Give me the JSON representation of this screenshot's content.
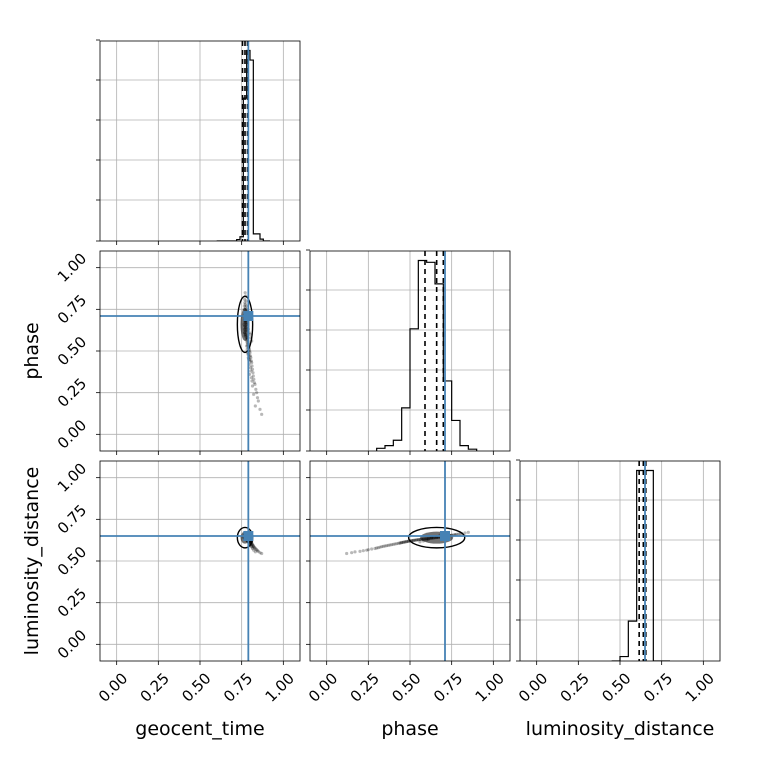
{
  "chart_data": {
    "type": "corner",
    "parameters": [
      "geocent_time",
      "phase",
      "luminosity_distance"
    ],
    "xlabels": [
      "geocent_time",
      "phase",
      "luminosity_distance"
    ],
    "ylabels": [
      "",
      "phase",
      "luminosity_distance"
    ],
    "axis_range": [
      -0.1,
      1.1
    ],
    "ticks": [
      0.0,
      0.25,
      0.5,
      0.75,
      1.0
    ],
    "tick_labels": [
      "0.00",
      "0.25",
      "0.50",
      "0.75",
      "1.00"
    ],
    "grid": true,
    "truths": [
      0.79,
      0.71,
      0.65
    ],
    "truth_color": "#4682b4",
    "hist_color": "#000000",
    "point_color": "#000000",
    "quantiles": [
      [
        0.755,
        0.77,
        0.785
      ],
      [
        0.59,
        0.66,
        0.7
      ],
      [
        0.615,
        0.64,
        0.655
      ]
    ],
    "histograms": [
      {
        "edges": [
          0.6,
          0.62,
          0.64,
          0.66,
          0.68,
          0.7,
          0.72,
          0.74,
          0.76,
          0.78,
          0.8,
          0.82,
          0.84,
          0.86,
          0.88,
          0.9,
          0.92
        ],
        "counts": [
          0,
          0,
          0,
          0,
          0,
          0,
          0.3,
          0.9,
          30,
          40,
          38,
          1.5,
          1.5,
          0.4,
          0,
          0
        ]
      },
      {
        "edges": [
          0.3,
          0.35,
          0.4,
          0.45,
          0.5,
          0.55,
          0.6,
          0.65,
          0.7,
          0.75,
          0.8,
          0.85,
          0.9
        ],
        "counts": [
          0.3,
          0.6,
          1.2,
          4.8,
          13.6,
          21.2,
          21.0,
          18.6,
          7.8,
          3.4,
          0.6,
          0.2
        ]
      },
      {
        "edges": [
          0.45,
          0.5,
          0.55,
          0.6,
          0.65,
          0.7,
          0.75,
          0.8
        ],
        "counts": [
          0,
          0.5,
          4.5,
          21.5,
          21.5,
          0,
          0
        ]
      }
    ],
    "samples": {
      "geocent_time": [
        0.771,
        0.774,
        0.768,
        0.776,
        0.769,
        0.772,
        0.777,
        0.766,
        0.773,
        0.779,
        0.765,
        0.774,
        0.771,
        0.778,
        0.768,
        0.77,
        0.775,
        0.763,
        0.772,
        0.776,
        0.767,
        0.781,
        0.773,
        0.769,
        0.77,
        0.775,
        0.764,
        0.778,
        0.772,
        0.768,
        0.774,
        0.776,
        0.766,
        0.771,
        0.78,
        0.773,
        0.769,
        0.767,
        0.775,
        0.772,
        0.777,
        0.771,
        0.782,
        0.784,
        0.779,
        0.786,
        0.781,
        0.788,
        0.783,
        0.79,
        0.785,
        0.792,
        0.787,
        0.78,
        0.794,
        0.789,
        0.796,
        0.783,
        0.791,
        0.798,
        0.786,
        0.8,
        0.793,
        0.788,
        0.803,
        0.795,
        0.79,
        0.805,
        0.798,
        0.792,
        0.808,
        0.8,
        0.81,
        0.795,
        0.812,
        0.803,
        0.815,
        0.806,
        0.818,
        0.797,
        0.82,
        0.809,
        0.823,
        0.812,
        0.826,
        0.83,
        0.815,
        0.835,
        0.84,
        0.822,
        0.845,
        0.85,
        0.832,
        0.86,
        0.87,
        0.776,
        0.783,
        0.79,
        0.795,
        0.8,
        0.805,
        0.81
      ],
      "phase": [
        0.85,
        0.83,
        0.81,
        0.8,
        0.79,
        0.78,
        0.77,
        0.77,
        0.76,
        0.75,
        0.75,
        0.74,
        0.73,
        0.73,
        0.72,
        0.72,
        0.71,
        0.71,
        0.7,
        0.7,
        0.69,
        0.69,
        0.68,
        0.68,
        0.67,
        0.67,
        0.66,
        0.66,
        0.65,
        0.65,
        0.64,
        0.64,
        0.63,
        0.63,
        0.62,
        0.62,
        0.61,
        0.61,
        0.6,
        0.6,
        0.59,
        0.59,
        0.58,
        0.58,
        0.57,
        0.57,
        0.56,
        0.56,
        0.55,
        0.55,
        0.54,
        0.54,
        0.53,
        0.53,
        0.52,
        0.52,
        0.51,
        0.51,
        0.5,
        0.5,
        0.49,
        0.49,
        0.48,
        0.48,
        0.47,
        0.47,
        0.46,
        0.46,
        0.45,
        0.45,
        0.44,
        0.44,
        0.43,
        0.42,
        0.41,
        0.4,
        0.39,
        0.38,
        0.37,
        0.36,
        0.35,
        0.34,
        0.33,
        0.32,
        0.31,
        0.3,
        0.29,
        0.27,
        0.25,
        0.24,
        0.22,
        0.2,
        0.17,
        0.15,
        0.12,
        0.68,
        0.66,
        0.63,
        0.61,
        0.6,
        0.58,
        0.56
      ],
      "luminosity_distance": [
        0.672,
        0.668,
        0.665,
        0.663,
        0.661,
        0.66,
        0.658,
        0.657,
        0.656,
        0.655,
        0.654,
        0.653,
        0.652,
        0.651,
        0.65,
        0.649,
        0.648,
        0.648,
        0.647,
        0.646,
        0.645,
        0.645,
        0.644,
        0.643,
        0.643,
        0.642,
        0.641,
        0.641,
        0.64,
        0.64,
        0.639,
        0.638,
        0.638,
        0.637,
        0.637,
        0.636,
        0.635,
        0.635,
        0.634,
        0.634,
        0.633,
        0.632,
        0.632,
        0.631,
        0.631,
        0.63,
        0.629,
        0.629,
        0.628,
        0.628,
        0.627,
        0.626,
        0.625,
        0.625,
        0.624,
        0.623,
        0.622,
        0.622,
        0.621,
        0.62,
        0.619,
        0.618,
        0.617,
        0.616,
        0.615,
        0.614,
        0.613,
        0.612,
        0.611,
        0.61,
        0.609,
        0.607,
        0.606,
        0.604,
        0.602,
        0.6,
        0.598,
        0.596,
        0.594,
        0.592,
        0.59,
        0.588,
        0.586,
        0.583,
        0.58,
        0.578,
        0.575,
        0.572,
        0.568,
        0.565,
        0.562,
        0.558,
        0.555,
        0.55,
        0.545,
        0.655,
        0.645,
        0.64,
        0.63,
        0.625,
        0.62,
        0.615
      ]
    }
  }
}
